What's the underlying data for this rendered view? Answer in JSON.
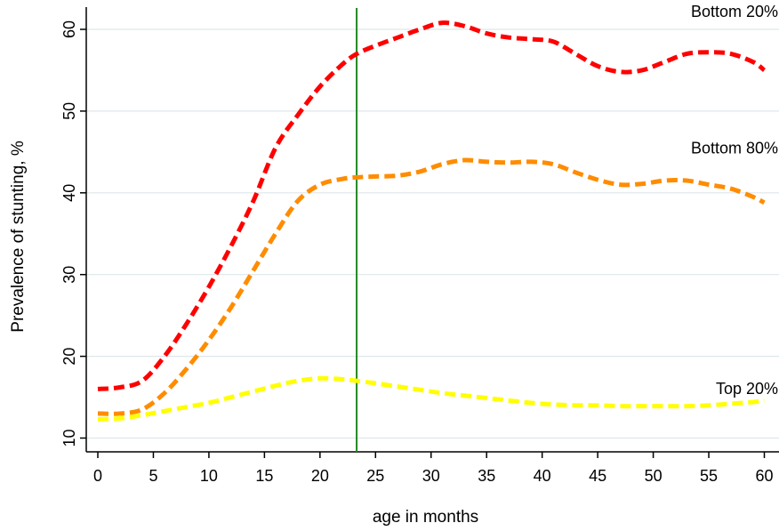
{
  "chart_data": {
    "type": "line",
    "xlabel": "age in months",
    "ylabel": "Prevalence of stunting, %",
    "xlim": [
      -1,
      61
    ],
    "ylim": [
      9,
      62.5
    ],
    "xticks": [
      0,
      5,
      10,
      15,
      20,
      25,
      30,
      35,
      40,
      45,
      50,
      55,
      60
    ],
    "yticks": [
      10,
      20,
      30,
      40,
      50,
      60
    ],
    "grid": "horizontal",
    "legend": "none",
    "reference_line": {
      "x": 23.3,
      "color": "#228B22"
    },
    "series": [
      {
        "name": "Bottom 20%",
        "color": "#FF0000",
        "label_at": [
          59,
          61.5
        ],
        "x": [
          0,
          2,
          4,
          6,
          8,
          10,
          12,
          14,
          16,
          18,
          20,
          22,
          23.3,
          25,
          27,
          29,
          31,
          33,
          35,
          37,
          39,
          41,
          43,
          45,
          47,
          49,
          51,
          53,
          55,
          57,
          59,
          60
        ],
        "y": [
          16,
          16.2,
          17,
          20,
          24,
          28.5,
          33.5,
          39,
          45.5,
          49.5,
          53,
          55.7,
          57,
          58,
          59,
          60,
          60.8,
          60.4,
          59.5,
          59,
          58.8,
          58.5,
          57,
          55.5,
          54.8,
          55,
          56,
          57,
          57.2,
          57,
          56,
          55
        ]
      },
      {
        "name": "Bottom 80%",
        "color": "#FF8C00",
        "label_at": [
          59,
          44.8
        ],
        "x": [
          0,
          2,
          4,
          6,
          8,
          10,
          12,
          14,
          16,
          18,
          20,
          22,
          23.3,
          25,
          27,
          29,
          31,
          33,
          35,
          37,
          39,
          41,
          43,
          45,
          47,
          49,
          51,
          53,
          55,
          57,
          59,
          60
        ],
        "y": [
          13,
          13,
          13.5,
          15.5,
          18.5,
          22,
          26,
          30.5,
          35,
          39,
          41,
          41.7,
          41.9,
          42,
          42.1,
          42.6,
          43.5,
          44,
          43.8,
          43.7,
          43.8,
          43.5,
          42.5,
          41.6,
          41,
          41.1,
          41.5,
          41.5,
          41,
          40.5,
          39.5,
          38.8
        ]
      },
      {
        "name": "Top 20%",
        "color": "#FFFF00",
        "label_at": [
          59,
          15.4
        ],
        "x": [
          0,
          2,
          4,
          6,
          8,
          10,
          12,
          14,
          16,
          18,
          20,
          22,
          23.3,
          25,
          27,
          29,
          31,
          33,
          35,
          37,
          39,
          41,
          43,
          45,
          47,
          49,
          51,
          53,
          55,
          57,
          59,
          60
        ],
        "y": [
          12.3,
          12.4,
          12.8,
          13.3,
          13.8,
          14.3,
          15,
          15.7,
          16.4,
          17,
          17.3,
          17.2,
          17,
          16.7,
          16.3,
          15.9,
          15.5,
          15.2,
          14.9,
          14.6,
          14.3,
          14.1,
          14,
          14,
          13.9,
          13.9,
          13.9,
          13.9,
          14,
          14.2,
          14.4,
          14.6
        ]
      }
    ]
  }
}
